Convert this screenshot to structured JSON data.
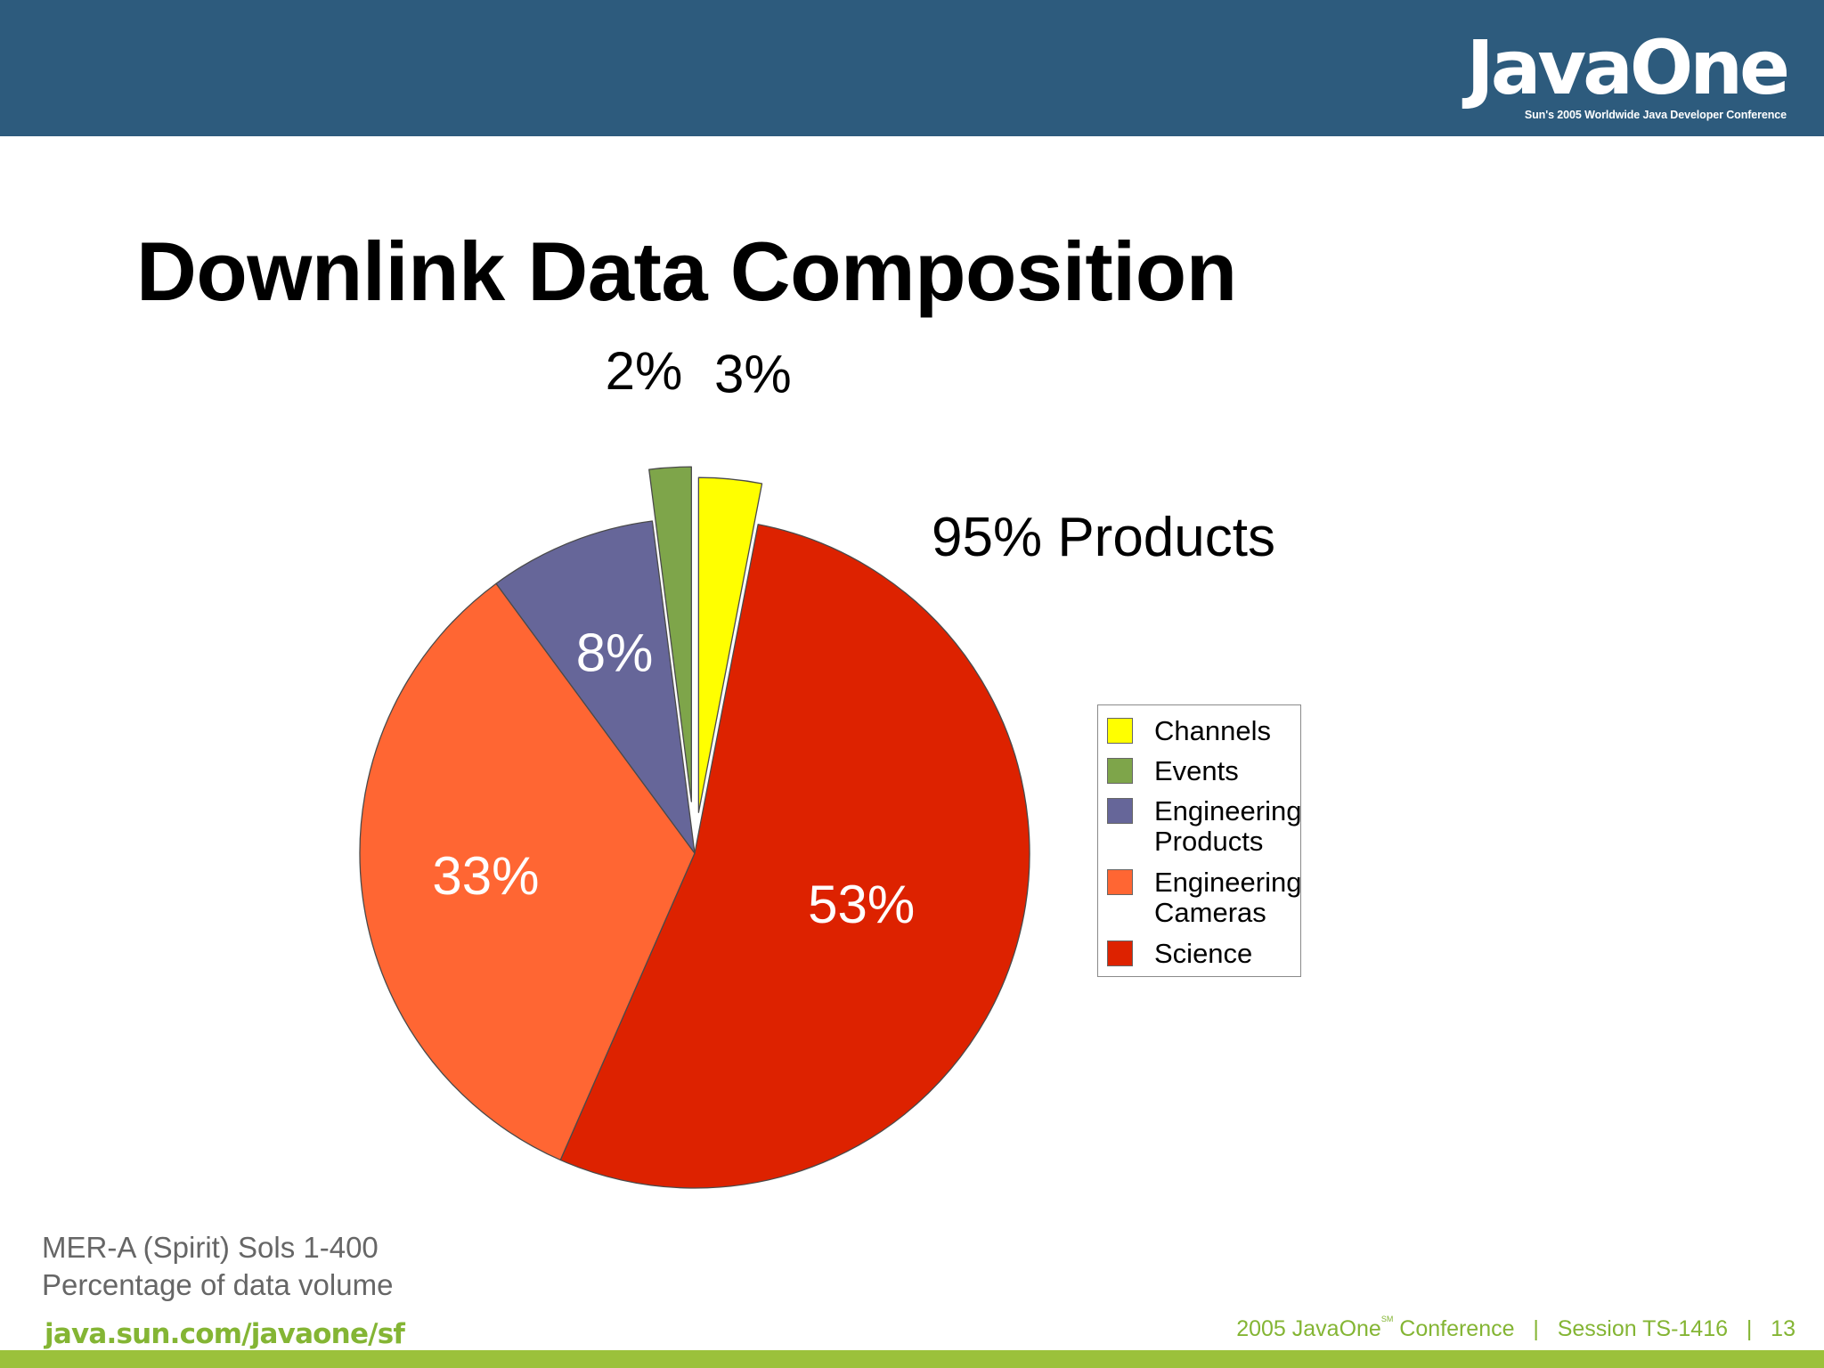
{
  "logo": {
    "wordmark": "JavaOne",
    "tagline": "Sun's 2005 Worldwide Java Developer Conference"
  },
  "slide": {
    "title": "Downlink Data Composition",
    "products_label": "95% Products",
    "source_line1": "MER-A (Spirit) Sols 1-400",
    "source_line2": "Percentage of data volume"
  },
  "footer": {
    "url": "java.sun.com/javaone/sf",
    "conference_prefix": "2005 JavaOne",
    "conference_sup": "SM",
    "conference_suffix": " Conference   |   Session TS-1416   |   13"
  },
  "chart_data": {
    "type": "pie",
    "title": "",
    "start": "12 o'clock, clockwise",
    "exploded": [
      "Channels",
      "Events"
    ],
    "labels": [
      "3%",
      "53%",
      "33%",
      "8%",
      "2%"
    ],
    "slices": [
      {
        "name": "Channels",
        "value": 3,
        "color": "#ffff00"
      },
      {
        "name": "Science",
        "value": 53,
        "color": "#dd2200"
      },
      {
        "name": "Engineering Cameras",
        "value": 33,
        "color": "#ff6633"
      },
      {
        "name": "Engineering Products",
        "value": 8,
        "color": "#666699"
      },
      {
        "name": "Events",
        "value": 2,
        "color": "#7ea54a"
      }
    ],
    "legend": [
      {
        "label": "Channels",
        "color": "#ffff00"
      },
      {
        "label": "Events",
        "color": "#7ea54a"
      },
      {
        "label": "Engineering Products",
        "color": "#666699"
      },
      {
        "label": "Engineering Cameras",
        "color": "#ff6633"
      },
      {
        "label": "Science",
        "color": "#dd2200"
      }
    ],
    "legend_position": "right"
  }
}
